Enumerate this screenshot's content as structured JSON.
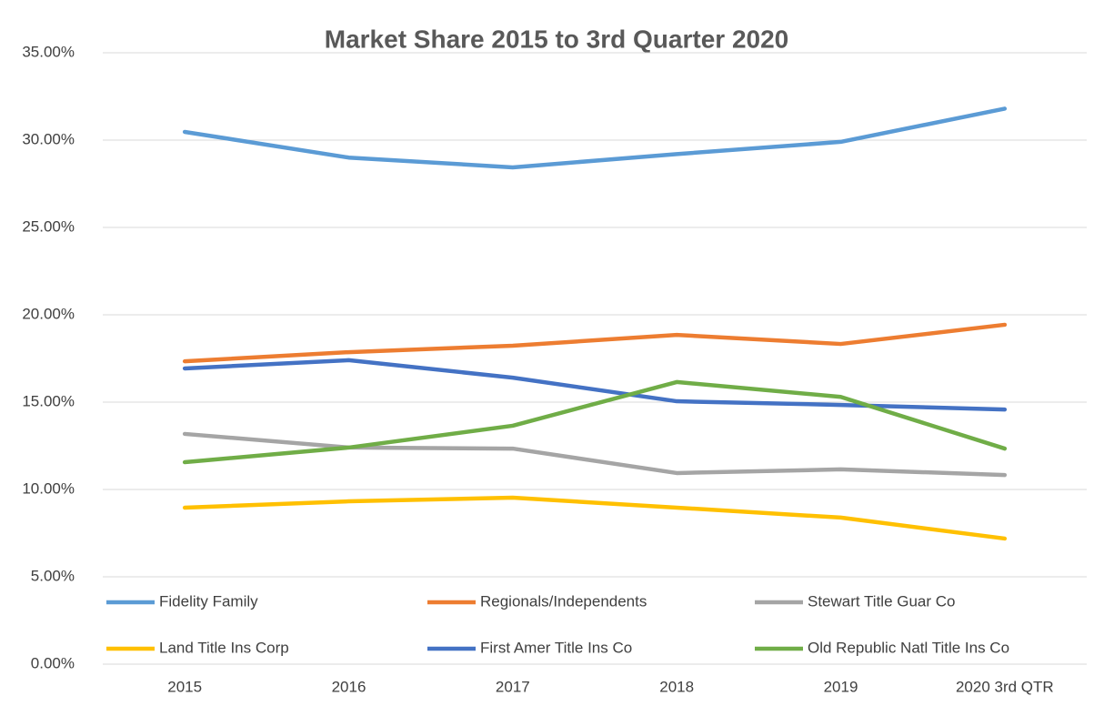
{
  "chart_data": {
    "type": "line",
    "title": "Market Share 2015 to 3rd Quarter 2020",
    "categories": [
      "2015",
      "2016",
      "2017",
      "2018",
      "2019",
      "2020 3rd QTR"
    ],
    "series": [
      {
        "name": "Fidelity Family",
        "color": "#5b9bd5",
        "values": [
          30.47,
          29.0,
          28.44,
          29.2,
          29.9,
          31.8
        ]
      },
      {
        "name": "Regionals/Independents",
        "color": "#ed7d31",
        "values": [
          17.34,
          17.86,
          18.23,
          18.85,
          18.33,
          19.43
        ]
      },
      {
        "name": "Stewart Title Guar Co",
        "color": "#a5a5a5",
        "values": [
          13.18,
          12.4,
          12.34,
          10.94,
          11.15,
          10.83
        ]
      },
      {
        "name": "Land Title Ins Corp",
        "color": "#ffc000",
        "values": [
          8.96,
          9.32,
          9.53,
          8.96,
          8.39,
          7.19
        ]
      },
      {
        "name": "First Amer Title Ins Co",
        "color": "#4472c4",
        "values": [
          16.93,
          17.4,
          16.4,
          15.05,
          14.84,
          14.58
        ]
      },
      {
        "name": "Old Republic Natl Title Ins Co",
        "color": "#70ad47",
        "values": [
          11.56,
          12.4,
          13.65,
          16.15,
          15.3,
          12.34
        ]
      }
    ],
    "ylim": [
      0,
      35
    ],
    "yticks": [
      {
        "value": 0,
        "label": "0.00%"
      },
      {
        "value": 5,
        "label": "5.00%"
      },
      {
        "value": 10,
        "label": "10.00%"
      },
      {
        "value": 15,
        "label": "15.00%"
      },
      {
        "value": 20,
        "label": "20.00%"
      },
      {
        "value": 25,
        "label": "25.00%"
      },
      {
        "value": 30,
        "label": "30.00%"
      },
      {
        "value": 35,
        "label": "35.00%"
      }
    ],
    "grid": true,
    "legend": "bottom"
  }
}
